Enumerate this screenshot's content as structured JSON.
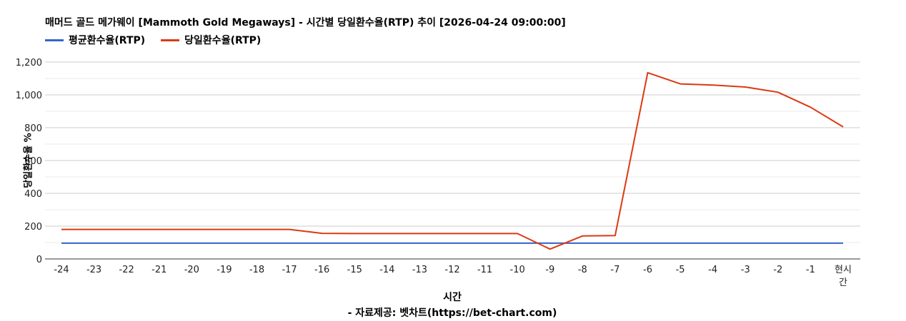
{
  "chart_data": {
    "type": "line",
    "title": "매머드 골드 메가웨이 [Mammoth Gold Megaways] - 시간별 당일환수율(RTP) 추이 [2026-04-24 09:00:00]",
    "xlabel": "시간",
    "ylabel": "당일환수율 %",
    "source": "- 자료제공: 벳차트(https://bet-chart.com)",
    "categories": [
      "-24",
      "-23",
      "-22",
      "-21",
      "-20",
      "-19",
      "-18",
      "-17",
      "-16",
      "-15",
      "-14",
      "-13",
      "-12",
      "-11",
      "-10",
      "-9",
      "-8",
      "-7",
      "-6",
      "-5",
      "-4",
      "-3",
      "-2",
      "-1",
      "현시간"
    ],
    "ylim": [
      0,
      1200
    ],
    "yticks": [
      "0",
      "200",
      "400",
      "600",
      "800",
      "1,000",
      "1,200"
    ],
    "ytick_values": [
      0,
      200,
      400,
      600,
      800,
      1000,
      1200
    ],
    "grid": true,
    "legend_position": "top-left",
    "series": [
      {
        "name": "평균환수율(RTP)",
        "color": "#3366cc",
        "values": [
          96,
          96,
          96,
          96,
          96,
          96,
          96,
          96,
          96,
          96,
          96,
          96,
          96,
          96,
          96,
          96,
          96,
          96,
          96,
          96,
          96,
          96,
          96,
          96,
          96
        ]
      },
      {
        "name": "당일환수율(RTP)",
        "color": "#dc3912",
        "values": [
          180,
          180,
          180,
          180,
          180,
          180,
          180,
          180,
          156,
          155,
          155,
          155,
          155,
          155,
          155,
          60,
          140,
          142,
          1135,
          1067,
          1060,
          1048,
          1016,
          925,
          805
        ]
      }
    ]
  }
}
